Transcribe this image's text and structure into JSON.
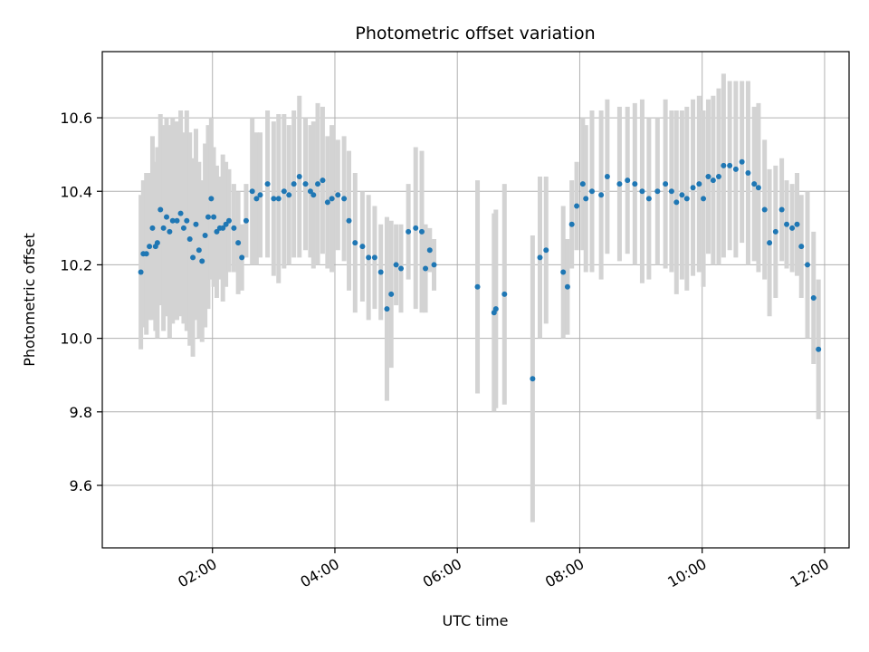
{
  "chart_data": {
    "type": "scatter",
    "title": "Photometric offset variation",
    "xlabel": "UTC time",
    "ylabel": "Photometric offset",
    "x_unit": "hours (UTC)",
    "xlim": [
      0.2,
      12.4
    ],
    "ylim": [
      9.43,
      10.78
    ],
    "xticks": [
      2,
      4,
      6,
      8,
      10,
      12
    ],
    "xtick_labels": [
      "02:00",
      "04:00",
      "06:00",
      "08:00",
      "10:00",
      "12:00"
    ],
    "yticks": [
      9.6,
      9.8,
      10.0,
      10.2,
      10.4,
      10.6
    ],
    "ytick_labels": [
      "9.6",
      "9.8",
      "10.0",
      "10.2",
      "10.4",
      "10.6"
    ],
    "grid": true,
    "colors": {
      "point": "#1f77b4",
      "errorbar": "#d3d3d3",
      "grid": "#b0b0b0"
    },
    "series": [
      {
        "x": [
          0.83,
          0.87,
          0.92,
          0.97,
          1.02,
          1.07,
          1.1,
          1.15,
          1.2,
          1.25,
          1.3,
          1.35,
          1.42,
          1.48,
          1.53,
          1.58,
          1.63,
          1.68,
          1.73,
          1.78,
          1.83,
          1.88,
          1.93,
          1.98,
          2.02,
          2.07,
          2.12,
          2.17,
          2.22,
          2.27,
          2.35,
          2.42,
          2.48,
          2.55,
          2.65,
          2.72,
          2.78,
          2.9,
          3.0,
          3.08,
          3.17,
          3.25,
          3.33,
          3.42,
          3.52,
          3.6,
          3.65,
          3.72,
          3.8,
          3.88,
          3.95,
          4.05,
          4.15,
          4.23,
          4.33,
          4.45,
          4.55,
          4.65,
          4.75,
          4.85,
          4.92,
          5.0,
          5.08,
          5.2,
          5.32,
          5.42,
          5.48,
          5.55,
          5.62,
          6.33,
          6.6,
          6.63,
          6.77,
          7.23,
          7.35,
          7.45,
          7.73,
          7.8,
          7.87,
          7.95,
          8.05,
          8.1,
          8.2,
          8.35,
          8.45,
          8.65,
          8.78,
          8.9,
          9.02,
          9.13,
          9.27,
          9.4,
          9.5,
          9.58,
          9.67,
          9.75,
          9.85,
          9.95,
          10.02,
          10.1,
          10.18,
          10.27,
          10.35,
          10.45,
          10.55,
          10.65,
          10.75,
          10.85,
          10.92,
          11.02,
          11.1,
          11.2,
          11.3,
          11.38,
          11.47,
          11.55,
          11.62,
          11.72,
          11.82,
          11.9
        ],
        "y": [
          10.18,
          10.23,
          10.23,
          10.25,
          10.3,
          10.25,
          10.26,
          10.35,
          10.3,
          10.33,
          10.29,
          10.32,
          10.32,
          10.34,
          10.3,
          10.32,
          10.27,
          10.22,
          10.31,
          10.24,
          10.21,
          10.28,
          10.33,
          10.38,
          10.33,
          10.29,
          10.3,
          10.3,
          10.31,
          10.32,
          10.3,
          10.26,
          10.22,
          10.32,
          10.4,
          10.38,
          10.39,
          10.42,
          10.38,
          10.38,
          10.4,
          10.39,
          10.42,
          10.44,
          10.42,
          10.4,
          10.39,
          10.42,
          10.43,
          10.37,
          10.38,
          10.39,
          10.38,
          10.32,
          10.26,
          10.25,
          10.22,
          10.22,
          10.18,
          10.08,
          10.12,
          10.2,
          10.19,
          10.29,
          10.3,
          10.29,
          10.19,
          10.24,
          10.2,
          10.14,
          10.07,
          10.08,
          10.12,
          9.89,
          10.22,
          10.24,
          10.18,
          10.14,
          10.31,
          10.36,
          10.42,
          10.38,
          10.4,
          10.39,
          10.44,
          10.42,
          10.43,
          10.42,
          10.4,
          10.38,
          10.4,
          10.42,
          10.4,
          10.37,
          10.39,
          10.38,
          10.41,
          10.42,
          10.38,
          10.44,
          10.43,
          10.44,
          10.47,
          10.47,
          10.46,
          10.48,
          10.45,
          10.42,
          10.41,
          10.35,
          10.26,
          10.29,
          10.35,
          10.31,
          10.3,
          10.31,
          10.25,
          10.2,
          10.11,
          9.97
        ],
        "yerr": [
          0.21,
          0.2,
          0.22,
          0.2,
          0.25,
          0.23,
          0.26,
          0.26,
          0.28,
          0.27,
          0.29,
          0.28,
          0.27,
          0.28,
          0.26,
          0.3,
          0.29,
          0.27,
          0.26,
          0.24,
          0.22,
          0.25,
          0.25,
          0.22,
          0.19,
          0.18,
          0.14,
          0.2,
          0.17,
          0.14,
          0.12,
          0.14,
          0.09,
          0.1,
          0.2,
          0.18,
          0.17,
          0.2,
          0.21,
          0.23,
          0.21,
          0.19,
          0.2,
          0.22,
          0.18,
          0.18,
          0.2,
          0.22,
          0.2,
          0.18,
          0.2,
          0.15,
          0.17,
          0.19,
          0.19,
          0.15,
          0.17,
          0.14,
          0.13,
          0.25,
          0.2,
          0.11,
          0.12,
          0.13,
          0.22,
          0.22,
          0.12,
          0.06,
          0.07,
          0.29,
          0.27,
          0.27,
          0.3,
          0.39,
          0.22,
          0.2,
          0.18,
          0.13,
          0.12,
          0.12,
          0.18,
          0.2,
          0.22,
          0.23,
          0.21,
          0.21,
          0.2,
          0.22,
          0.25,
          0.22,
          0.2,
          0.23,
          0.22,
          0.25,
          0.23,
          0.25,
          0.24,
          0.24,
          0.24,
          0.21,
          0.23,
          0.24,
          0.25,
          0.23,
          0.24,
          0.22,
          0.25,
          0.21,
          0.23,
          0.19,
          0.2,
          0.18,
          0.14,
          0.12,
          0.12,
          0.14,
          0.14,
          0.2,
          0.18,
          0.19
        ]
      }
    ]
  }
}
